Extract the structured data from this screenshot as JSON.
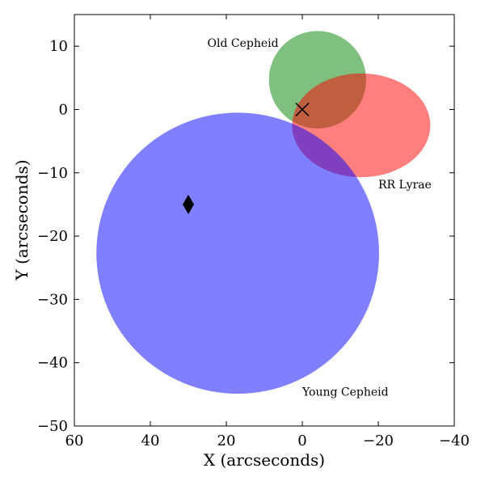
{
  "chart_data": {
    "type": "scatter",
    "xlabel": "X (arcseconds)",
    "ylabel": "Y (arcseconds)",
    "xlim": [
      60,
      -40
    ],
    "ylim": [
      -50,
      15
    ],
    "x_ticks": [
      60,
      40,
      20,
      0,
      -20,
      -40
    ],
    "y_ticks": [
      10,
      0,
      -10,
      -20,
      -30,
      -40,
      -50
    ],
    "grid": false,
    "regions": [
      {
        "name": "Old Cepheid",
        "cx": -4,
        "cy": 4.7,
        "rx": 12.8,
        "ry": 7.7,
        "color": "#008000",
        "alpha": 0.5,
        "label": "Old Cepheid",
        "label_at": [
          25,
          10.5
        ]
      },
      {
        "name": "RR Lyrae",
        "cx": -15.5,
        "cy": -2.5,
        "rx": 18.2,
        "ry": 8.2,
        "color": "#ff0000",
        "alpha": 0.5,
        "label": "RR Lyrae",
        "label_at": [
          -20,
          -11.8
        ]
      },
      {
        "name": "Young Cepheid",
        "cx": 17,
        "cy": -22.7,
        "rx": 37.2,
        "ry": 22.2,
        "color": "#0000ff",
        "alpha": 0.5,
        "label": "Young Cepheid",
        "label_at": [
          0,
          -44.6
        ]
      }
    ],
    "markers": [
      {
        "type": "x",
        "x": 0,
        "y": 0,
        "color": "#000000"
      },
      {
        "type": "diamond",
        "x": 30,
        "y": -15,
        "color": "#000000"
      }
    ]
  }
}
